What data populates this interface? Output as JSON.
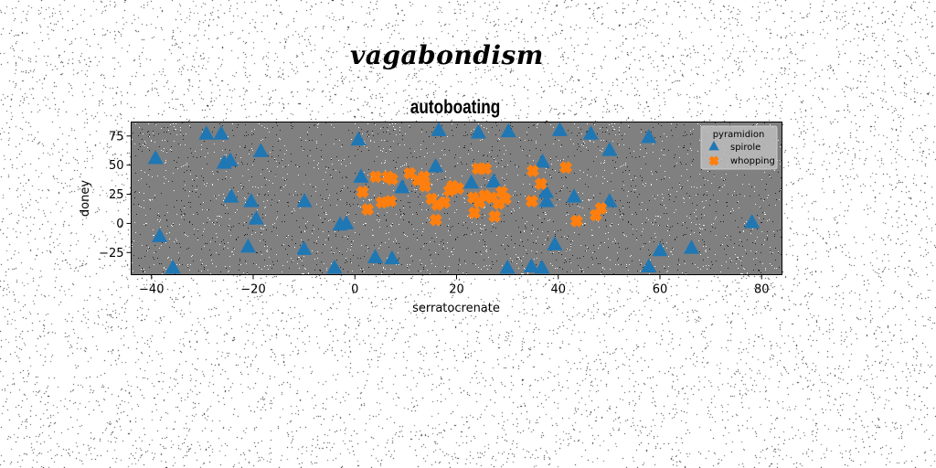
{
  "figure": {
    "suptitle": "vagabondism"
  },
  "chart_data": {
    "type": "scatter",
    "title": "autoboating",
    "xlabel": "serratocrenate",
    "ylabel": "doney",
    "xlim": [
      -44,
      84
    ],
    "ylim": [
      -44,
      87
    ],
    "xticks": [
      -40,
      -20,
      0,
      20,
      40,
      60,
      80
    ],
    "yticks": [
      -25,
      0,
      25,
      50,
      75
    ],
    "grid": false,
    "legend": {
      "title": "pyramidion",
      "placement": "top-right"
    },
    "colors": {
      "axes_bg": "#808080",
      "spirole": "#1f77b4",
      "whopping": "#ff7f0e"
    },
    "series": [
      {
        "name": "spirole",
        "marker": "triangle",
        "points": [
          [
            -29.2,
            77
          ],
          [
            -26.3,
            77
          ],
          [
            -39.2,
            56
          ],
          [
            -25.7,
            52
          ],
          [
            -24.5,
            54
          ],
          [
            -18.5,
            62
          ],
          [
            -24.3,
            23
          ],
          [
            -20.4,
            19
          ],
          [
            -19.4,
            4
          ],
          [
            -21.0,
            -20
          ],
          [
            -38.4,
            -11
          ],
          [
            -35.8,
            -38
          ],
          [
            -9.9,
            19
          ],
          [
            -10.0,
            -22
          ],
          [
            -1.7,
            0
          ],
          [
            -2.9,
            -1
          ],
          [
            0.7,
            72
          ],
          [
            1.2,
            40
          ],
          [
            4.0,
            -29
          ],
          [
            7.3,
            -30
          ],
          [
            -4.0,
            -38
          ],
          [
            9.3,
            31
          ],
          [
            16.5,
            80
          ],
          [
            15.9,
            49
          ],
          [
            24.3,
            78
          ],
          [
            22.9,
            35
          ],
          [
            27.3,
            36
          ],
          [
            30.2,
            79
          ],
          [
            36.9,
            53
          ],
          [
            37.6,
            27
          ],
          [
            37.7,
            19
          ],
          [
            40.3,
            80
          ],
          [
            46.4,
            77
          ],
          [
            43.1,
            23
          ],
          [
            50.1,
            63
          ],
          [
            50.1,
            19
          ],
          [
            57.8,
            74
          ],
          [
            39.3,
            -18
          ],
          [
            30.0,
            -38
          ],
          [
            34.7,
            -37
          ],
          [
            36.8,
            -38
          ],
          [
            57.8,
            -37
          ],
          [
            60.0,
            -23
          ],
          [
            66.2,
            -21
          ],
          [
            78.1,
            1
          ]
        ]
      },
      {
        "name": "whopping",
        "marker": "x",
        "points": [
          [
            1.5,
            27
          ],
          [
            2.5,
            12
          ],
          [
            4.1,
            40
          ],
          [
            6.5,
            40
          ],
          [
            5.3,
            18
          ],
          [
            7.0,
            19
          ],
          [
            7.3,
            38
          ],
          [
            10.8,
            43
          ],
          [
            12.4,
            37
          ],
          [
            13.8,
            32
          ],
          [
            13.6,
            40
          ],
          [
            15.1,
            21
          ],
          [
            16.2,
            16
          ],
          [
            15.9,
            3
          ],
          [
            17.6,
            18
          ],
          [
            18.6,
            28
          ],
          [
            19.2,
            32
          ],
          [
            20.3,
            30
          ],
          [
            23.3,
            22
          ],
          [
            23.5,
            9
          ],
          [
            24.5,
            18
          ],
          [
            24.2,
            47
          ],
          [
            25.7,
            47
          ],
          [
            25.5,
            24
          ],
          [
            26.9,
            22
          ],
          [
            27.5,
            6
          ],
          [
            28.3,
            17
          ],
          [
            28.9,
            27
          ],
          [
            29.6,
            21
          ],
          [
            34.8,
            19
          ],
          [
            35.0,
            45
          ],
          [
            36.6,
            34
          ],
          [
            41.5,
            48
          ],
          [
            43.6,
            2
          ],
          [
            47.4,
            7
          ],
          [
            48.4,
            13
          ]
        ]
      }
    ]
  }
}
